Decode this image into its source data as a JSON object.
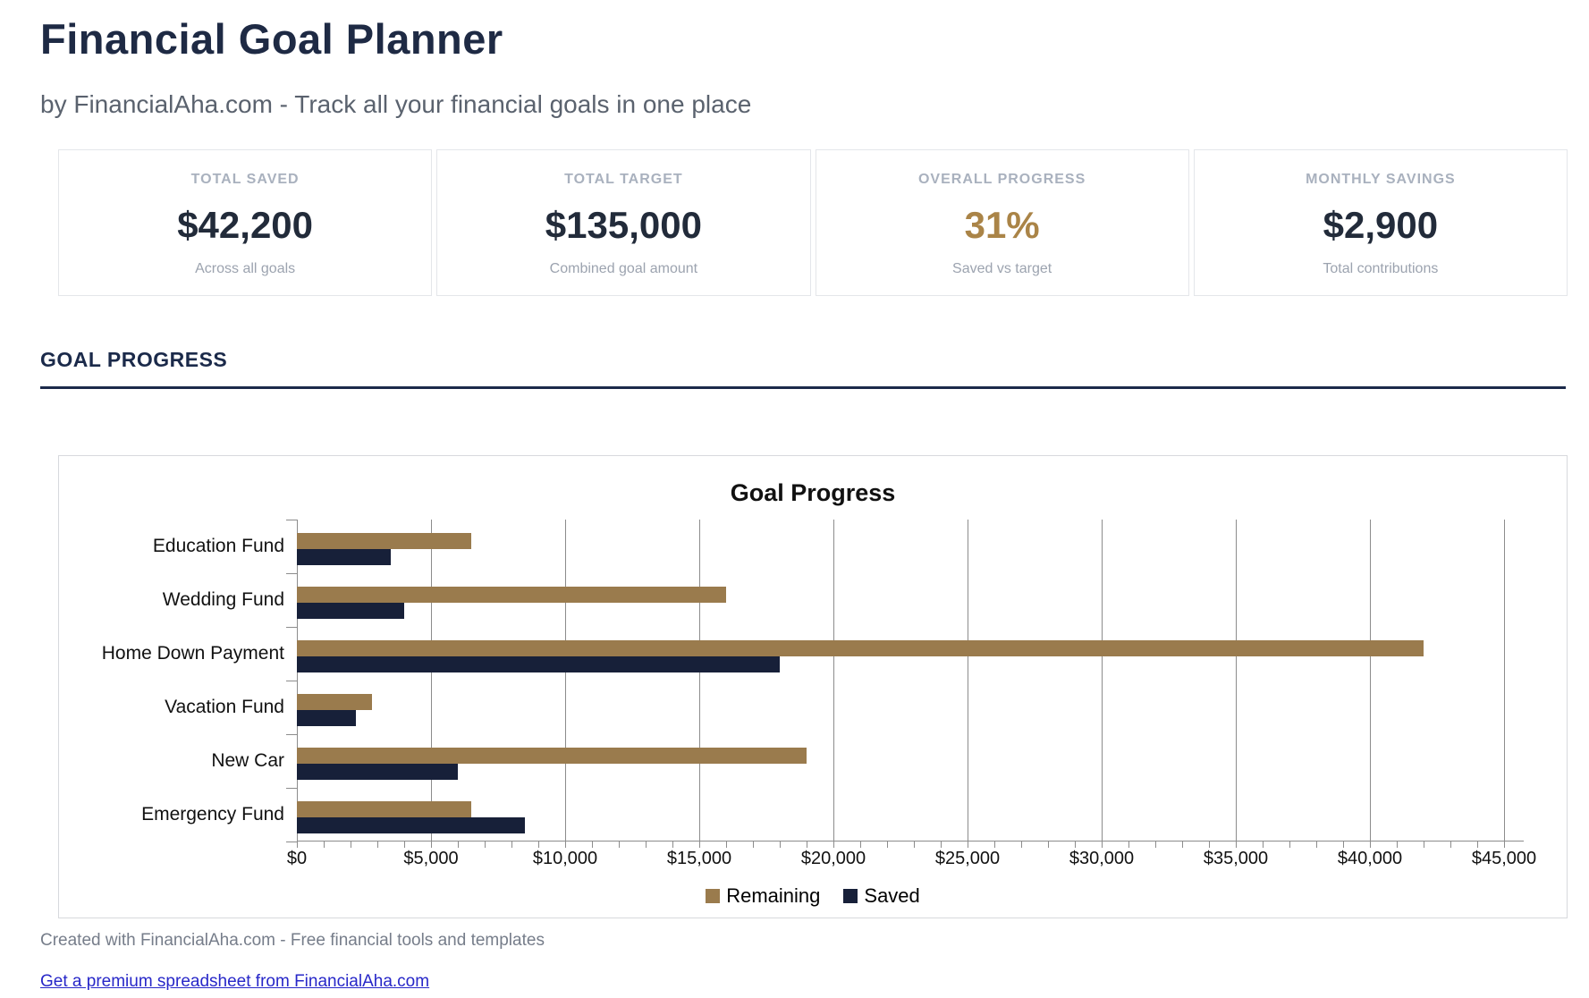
{
  "page": {
    "title": "Financial Goal Planner",
    "subtitle": "by FinancialAha.com - Track all your financial goals in one place",
    "footer_note": "Created with FinancialAha.com - Free financial tools and templates",
    "footer_link": "Get a premium spreadsheet from FinancialAha.com"
  },
  "stats": [
    {
      "label": "TOTAL SAVED",
      "value": "$42,200",
      "sublabel": "Across all goals"
    },
    {
      "label": "TOTAL TARGET",
      "value": "$135,000",
      "sublabel": "Combined goal amount"
    },
    {
      "label": "OVERALL PROGRESS",
      "value": "31%",
      "sublabel": "Saved vs target"
    },
    {
      "label": "MONTHLY SAVINGS",
      "value": "$2,900",
      "sublabel": "Total contributions"
    }
  ],
  "section": {
    "title": "GOAL PROGRESS"
  },
  "colors": {
    "navy_heading": "#1b2a4a",
    "accent_gold": "#aa8447",
    "remaining_bar": "#9a7b4d",
    "saved_bar": "#172039",
    "link_blue": "#2727c8"
  },
  "chart_data": {
    "type": "bar",
    "orientation": "horizontal",
    "title": "Goal Progress",
    "categories": [
      "Education Fund",
      "Wedding Fund",
      "Home Down Payment",
      "Vacation Fund",
      "New Car",
      "Emergency Fund"
    ],
    "series": [
      {
        "name": "Remaining",
        "color": "#9a7b4d",
        "values": [
          6500,
          16000,
          42000,
          2800,
          19000,
          6500
        ]
      },
      {
        "name": "Saved",
        "color": "#172039",
        "values": [
          3500,
          4000,
          18000,
          2200,
          6000,
          8500
        ]
      }
    ],
    "x_axis": {
      "min": 0,
      "max": 45000,
      "major_step": 5000,
      "minor_step": 1000,
      "tick_labels": [
        "$0",
        "$5,000",
        "$10,000",
        "$15,000",
        "$20,000",
        "$25,000",
        "$30,000",
        "$35,000",
        "$40,000",
        "$45,000"
      ]
    },
    "legend": [
      "Remaining",
      "Saved"
    ],
    "legend_position": "bottom",
    "grid": true
  }
}
